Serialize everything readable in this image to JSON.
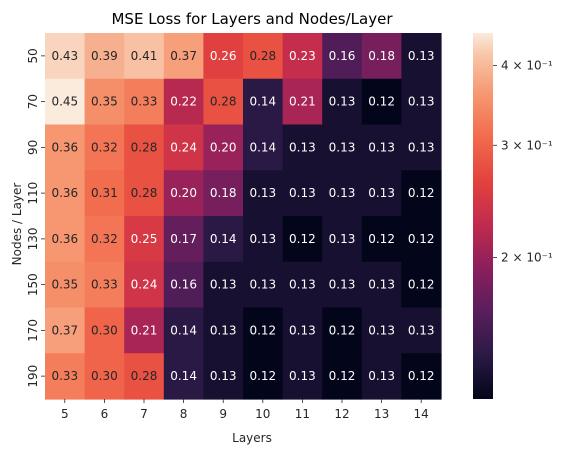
{
  "chart_data": {
    "type": "heatmap",
    "title": "MSE Loss for Layers and Nodes/Layer",
    "xlabel": "Layers",
    "ylabel": "Nodes / Layer",
    "x_categories": [
      "5",
      "6",
      "7",
      "8",
      "9",
      "10",
      "11",
      "12",
      "13",
      "14"
    ],
    "y_categories": [
      "50",
      "70",
      "90",
      "110",
      "130",
      "150",
      "170",
      "190"
    ],
    "values": [
      [
        "0.43",
        "0.39",
        "0.41",
        "0.37",
        "0.26",
        "0.28",
        "0.23",
        "0.16",
        "0.18",
        "0.13"
      ],
      [
        "0.45",
        "0.35",
        "0.33",
        "0.22",
        "0.28",
        "0.14",
        "0.21",
        "0.13",
        "0.12",
        "0.13"
      ],
      [
        "0.36",
        "0.32",
        "0.28",
        "0.24",
        "0.20",
        "0.14",
        "0.13",
        "0.13",
        "0.13",
        "0.13"
      ],
      [
        "0.36",
        "0.31",
        "0.28",
        "0.20",
        "0.18",
        "0.13",
        "0.13",
        "0.13",
        "0.13",
        "0.12"
      ],
      [
        "0.36",
        "0.32",
        "0.25",
        "0.17",
        "0.14",
        "0.13",
        "0.12",
        "0.13",
        "0.12",
        "0.12"
      ],
      [
        "0.35",
        "0.33",
        "0.24",
        "0.16",
        "0.13",
        "0.13",
        "0.13",
        "0.13",
        "0.13",
        "0.12"
      ],
      [
        "0.37",
        "0.30",
        "0.21",
        "0.14",
        "0.13",
        "0.12",
        "0.13",
        "0.12",
        "0.13",
        "0.13"
      ],
      [
        "0.33",
        "0.30",
        "0.28",
        "0.14",
        "0.13",
        "0.12",
        "0.13",
        "0.12",
        "0.13",
        "0.12"
      ]
    ],
    "colorbar": {
      "scale": "log",
      "range": [
        0.12,
        0.45
      ],
      "ticks": [
        {
          "value": 0.4,
          "label": "4 × 10⁻¹"
        },
        {
          "value": 0.3,
          "label": "3 × 10⁻¹"
        },
        {
          "value": 0.2,
          "label": "2 × 10⁻¹"
        }
      ]
    },
    "colormap": "rocket",
    "grid": false,
    "legend": "colorbar-right"
  }
}
